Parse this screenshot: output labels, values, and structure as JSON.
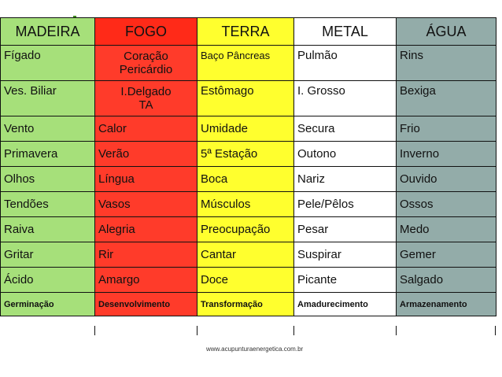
{
  "colors": {
    "madeira": "#a6e07a",
    "fogo": "#ff3b2a",
    "terra": "#ffff2e",
    "metal": "#ffffff",
    "agua": "#93aca9",
    "decoration": "#7dbf3e"
  },
  "headers": [
    "MADEIRA",
    "FOGO",
    "TERRA",
    "METAL",
    "ÁGUA"
  ],
  "rows": [
    [
      "Fígado",
      "Coração Pericárdio",
      "Baço Pâncreas",
      "Pulmão",
      "Rins"
    ],
    [
      "Ves. Biliar",
      "I.Delgado TA",
      "Estômago",
      "I. Grosso",
      "Bexiga"
    ],
    [
      "Vento",
      "Calor",
      "Umidade",
      "Secura",
      "Frio"
    ],
    [
      "Primavera",
      "Verão",
      "5ª Estação",
      "Outono",
      "Inverno"
    ],
    [
      "Olhos",
      "Língua",
      "Boca",
      "Nariz",
      "Ouvido"
    ],
    [
      "Tendões",
      "Vasos",
      "Músculos",
      "Pele/Pêlos",
      "Ossos"
    ],
    [
      "Raiva",
      "Alegria",
      "Preocupação",
      "Pesar",
      "Medo"
    ],
    [
      "Gritar",
      "Rir",
      "Cantar",
      "Suspirar",
      "Gemer"
    ],
    [
      "Ácido",
      "Amargo",
      "Doce",
      "Picante",
      "Salgado"
    ],
    [
      "Germinação",
      "Desenvolvimento",
      "Transformação",
      "Amadurecimento",
      "Armazenamento"
    ]
  ],
  "footer": "www.acupunturaenergetica.com.br"
}
